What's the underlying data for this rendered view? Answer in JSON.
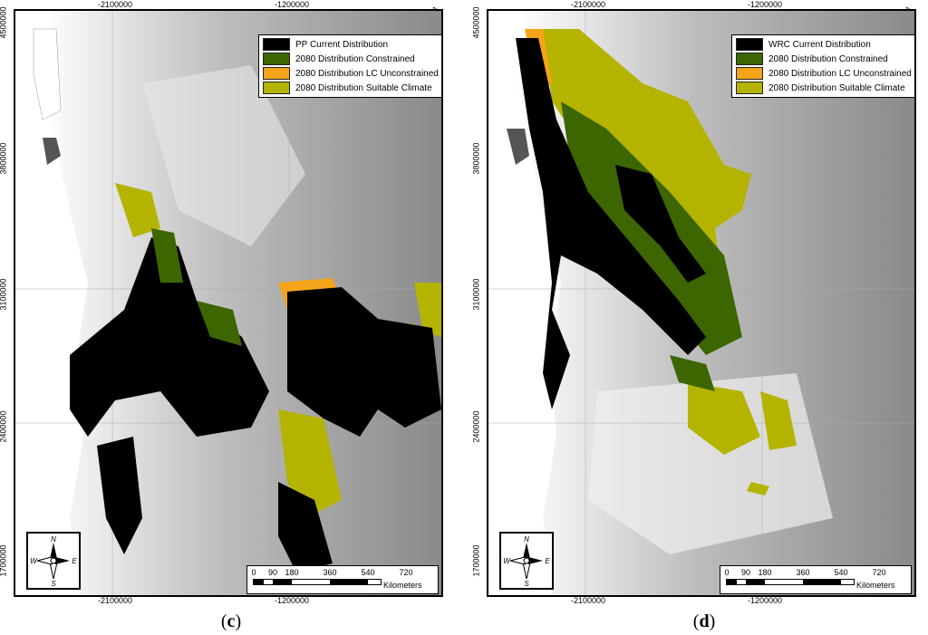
{
  "panels": [
    {
      "id": "c",
      "caption_open": "(",
      "caption_letter": "c",
      "caption_close": ")",
      "legend": [
        {
          "label": "PP Current Distribution",
          "color": "#000000"
        },
        {
          "label": "2080 Distribution Constrained",
          "color": "#3d6600"
        },
        {
          "label": "2080 Distribution LC Unconstrained",
          "color": "#f4a41a"
        },
        {
          "label": "2080 Distribution Suitable Climate",
          "color": "#b4b400"
        }
      ]
    },
    {
      "id": "d",
      "caption_open": "(",
      "caption_letter": "d",
      "caption_close": ")",
      "legend": [
        {
          "label": "WRC Current Distribution",
          "color": "#000000"
        },
        {
          "label": "2080 Distribution Constrained",
          "color": "#3d6600"
        },
        {
          "label": "2080 Distribution LC Unconstrained",
          "color": "#f4a41a"
        },
        {
          "label": "2080 Distribution Suitable Climate",
          "color": "#b4b400"
        }
      ]
    }
  ],
  "x_ticks": [
    "-2100000",
    "-1200000"
  ],
  "y_ticks": [
    "4500000",
    "3800000",
    "3100000",
    "2400000",
    "1700000"
  ],
  "scale": {
    "labels": [
      "0",
      "90",
      "180",
      "360",
      "540",
      "720"
    ],
    "unit": "Kilometers"
  },
  "compass": {
    "n": "N",
    "s": "S",
    "e": "E",
    "w": "W"
  }
}
